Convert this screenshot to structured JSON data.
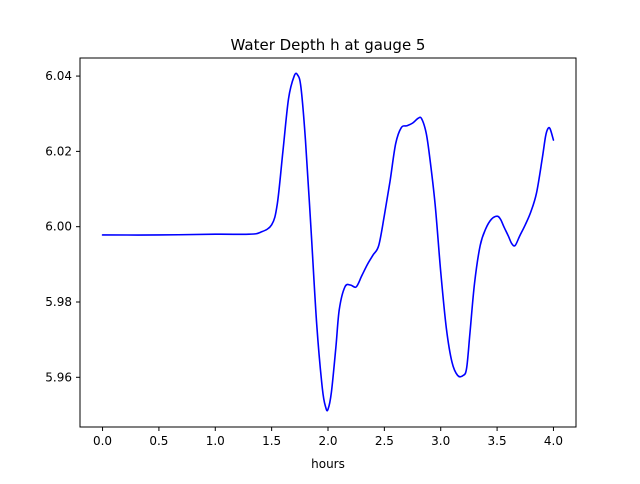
{
  "chart_data": {
    "type": "line",
    "title": "Water Depth h at gauge 5",
    "xlabel": "hours",
    "ylabel": "",
    "xlim": [
      -0.2,
      4.2
    ],
    "ylim": [
      5.9468,
      6.0448
    ],
    "xticks": [
      0.0,
      0.5,
      1.0,
      1.5,
      2.0,
      2.5,
      3.0,
      3.5,
      4.0
    ],
    "xtick_labels": [
      "0.0",
      "0.5",
      "1.0",
      "1.5",
      "2.0",
      "2.5",
      "3.0",
      "3.5",
      "4.0"
    ],
    "yticks": [
      5.96,
      5.98,
      6.0,
      6.02,
      6.04
    ],
    "ytick_labels": [
      "5.96",
      "5.98",
      "6.00",
      "6.02",
      "6.04"
    ],
    "grid": false,
    "legend": "none",
    "series": [
      {
        "color": "#0000ff",
        "x": [
          0.0,
          0.5,
          1.0,
          1.3,
          1.4,
          1.5,
          1.55,
          1.6,
          1.65,
          1.7,
          1.73,
          1.76,
          1.8,
          1.85,
          1.9,
          1.95,
          1.98,
          2.0,
          2.03,
          2.07,
          2.1,
          2.15,
          2.2,
          2.25,
          2.3,
          2.35,
          2.4,
          2.45,
          2.5,
          2.55,
          2.6,
          2.65,
          2.7,
          2.75,
          2.8,
          2.83,
          2.87,
          2.9,
          2.95,
          3.0,
          3.05,
          3.1,
          3.15,
          3.2,
          3.23,
          3.26,
          3.3,
          3.35,
          3.4,
          3.45,
          3.5,
          3.53,
          3.56,
          3.6,
          3.63,
          3.66,
          3.7,
          3.75,
          3.8,
          3.85,
          3.9,
          3.93,
          3.95,
          3.97,
          4.0
        ],
        "y": [
          5.9978,
          5.9978,
          5.998,
          5.998,
          5.9985,
          6.0005,
          6.006,
          6.02,
          6.034,
          6.04,
          6.0403,
          6.037,
          6.023,
          5.999,
          5.974,
          5.957,
          5.952,
          5.9515,
          5.956,
          5.968,
          5.978,
          5.984,
          5.9845,
          5.984,
          5.987,
          5.99,
          5.9925,
          5.995,
          6.003,
          6.012,
          6.022,
          6.0263,
          6.0268,
          6.0275,
          6.0288,
          6.0287,
          6.025,
          6.019,
          6.006,
          5.988,
          5.973,
          5.964,
          5.9605,
          5.9605,
          5.9625,
          5.972,
          5.985,
          5.995,
          5.9995,
          6.002,
          6.0028,
          6.002,
          6.0,
          5.9975,
          5.9955,
          5.995,
          5.9975,
          6.0005,
          6.004,
          6.009,
          6.018,
          6.024,
          6.026,
          6.026,
          6.023
        ]
      }
    ]
  }
}
